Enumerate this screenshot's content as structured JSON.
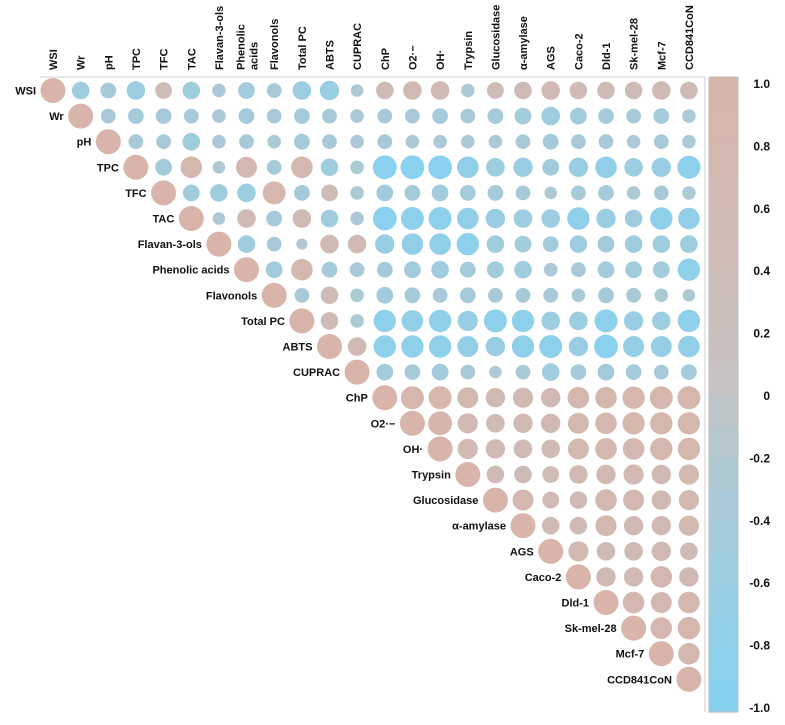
{
  "chart_data": {
    "type": "heatmap",
    "variables": [
      "WSI",
      "Wr",
      "pH",
      "TPC",
      "TFC",
      "TAC",
      "Flavan-3-ols",
      "Phenolic acids",
      "Flavonols",
      "Total PC",
      "ABTS",
      "CUPRAC",
      "ChP",
      "O2·−",
      "OH·",
      "Trypsin",
      "Glucosidase",
      "α-amylase",
      "AGS",
      "Caco-2",
      "Dld-1",
      "Sk-mel-28",
      "Mcf-7",
      "CCD841CoN"
    ],
    "column_labels": [
      [
        "WSI"
      ],
      [
        "Wr"
      ],
      [
        "pH"
      ],
      [
        "TPC"
      ],
      [
        "TFC"
      ],
      [
        "TAC"
      ],
      [
        "Flavan-3-ols"
      ],
      [
        "Phenolic",
        "acids"
      ],
      [
        "Flavonols"
      ],
      [
        "Total PC"
      ],
      [
        "ABTS"
      ],
      [
        "CUPRAC"
      ],
      [
        "ChP"
      ],
      [
        "O2·−"
      ],
      [
        "OH·"
      ],
      [
        "Trypsin"
      ],
      [
        "Glucosidase"
      ],
      [
        "α-amylase"
      ],
      [
        "AGS"
      ],
      [
        "Caco-2"
      ],
      [
        "Dld-1"
      ],
      [
        "Sk-mel-28"
      ],
      [
        "Mcf-7"
      ],
      [
        "CCD841CoN"
      ]
    ],
    "colorbar": {
      "ticks": [
        "1.0",
        "0.8",
        "0.6",
        "0.4",
        "0.2",
        "0",
        "-0.2",
        "-0.4",
        "-0.6",
        "-0.8",
        "-1.0"
      ],
      "range": [
        -1,
        1
      ],
      "high_color": "#d8b4aa",
      "mid_color": "#c4c4c4",
      "low_color": "#84d2f2"
    },
    "matrix": [
      [
        1,
        -0.5,
        -0.4,
        -0.55,
        0.45,
        -0.5,
        -0.3,
        -0.45,
        -0.35,
        -0.55,
        -0.6,
        -0.25,
        0.5,
        0.55,
        0.55,
        -0.3,
        0.45,
        0.5,
        0.55,
        0.5,
        0.5,
        0.5,
        0.55,
        0.5
      ],
      [
        null,
        1,
        -0.35,
        -0.4,
        -0.4,
        -0.35,
        -0.3,
        -0.4,
        -0.35,
        -0.4,
        -0.35,
        -0.3,
        -0.35,
        -0.35,
        -0.4,
        -0.35,
        -0.4,
        -0.45,
        -0.55,
        -0.45,
        -0.4,
        -0.35,
        -0.4,
        -0.3
      ],
      [
        null,
        null,
        1,
        -0.35,
        -0.35,
        -0.5,
        -0.3,
        -0.35,
        -0.3,
        -0.4,
        -0.35,
        -0.3,
        -0.35,
        -0.3,
        -0.3,
        -0.3,
        -0.3,
        -0.35,
        -0.4,
        -0.35,
        -0.35,
        -0.3,
        -0.35,
        -0.3
      ],
      [
        null,
        null,
        null,
        1,
        -0.45,
        0.75,
        -0.25,
        0.7,
        -0.35,
        0.75,
        -0.5,
        -0.3,
        -0.9,
        -0.9,
        -0.9,
        -0.75,
        -0.55,
        -0.6,
        -0.45,
        -0.6,
        -0.75,
        -0.55,
        -0.6,
        -0.85
      ],
      [
        null,
        null,
        null,
        null,
        1,
        -0.45,
        -0.5,
        -0.55,
        0.85,
        -0.4,
        0.45,
        -0.3,
        -0.45,
        -0.4,
        -0.45,
        -0.4,
        -0.4,
        -0.35,
        -0.25,
        -0.35,
        -0.4,
        -0.3,
        -0.35,
        -0.3
      ],
      [
        null,
        null,
        null,
        null,
        null,
        1,
        -0.25,
        0.55,
        -0.4,
        0.55,
        -0.5,
        -0.3,
        -0.9,
        -0.85,
        -0.85,
        -0.75,
        -0.6,
        -0.55,
        -0.55,
        -0.8,
        -0.6,
        -0.5,
        -0.8,
        -0.75
      ],
      [
        null,
        null,
        null,
        null,
        null,
        null,
        1,
        -0.5,
        -0.35,
        -0.2,
        0.55,
        0.55,
        -0.6,
        -0.75,
        -0.75,
        -0.8,
        -0.5,
        -0.45,
        -0.4,
        -0.5,
        -0.45,
        -0.5,
        -0.5,
        -0.5
      ],
      [
        null,
        null,
        null,
        null,
        null,
        null,
        null,
        1,
        -0.45,
        0.75,
        -0.4,
        -0.35,
        -0.4,
        -0.45,
        -0.5,
        -0.4,
        -0.45,
        -0.5,
        -0.3,
        -0.35,
        -0.45,
        -0.45,
        -0.45,
        -0.8
      ],
      [
        null,
        null,
        null,
        null,
        null,
        null,
        null,
        null,
        1,
        -0.35,
        0.5,
        -0.3,
        -0.45,
        -0.4,
        -0.35,
        -0.4,
        -0.35,
        -0.35,
        -0.35,
        -0.3,
        -0.4,
        -0.35,
        -0.3,
        -0.25
      ],
      [
        null,
        null,
        null,
        null,
        null,
        null,
        null,
        null,
        null,
        1,
        0.5,
        -0.3,
        -0.8,
        -0.75,
        -0.8,
        -0.65,
        -0.85,
        -0.8,
        -0.55,
        -0.55,
        -0.85,
        -0.6,
        -0.55,
        -0.8
      ],
      [
        null,
        null,
        null,
        null,
        null,
        null,
        null,
        null,
        null,
        null,
        1,
        0.55,
        -0.8,
        -0.8,
        -0.8,
        -0.7,
        -0.6,
        -0.8,
        -0.85,
        -0.6,
        -0.9,
        -0.7,
        -0.7,
        -0.75
      ],
      [
        null,
        null,
        null,
        null,
        null,
        null,
        null,
        null,
        null,
        null,
        null,
        1,
        -0.45,
        -0.4,
        -0.45,
        -0.35,
        -0.25,
        -0.35,
        -0.5,
        -0.4,
        -0.45,
        -0.4,
        -0.35,
        -0.4
      ],
      [
        null,
        null,
        null,
        null,
        null,
        null,
        null,
        null,
        null,
        null,
        null,
        null,
        1,
        0.85,
        0.85,
        0.7,
        0.6,
        0.65,
        0.6,
        0.75,
        0.75,
        0.8,
        0.85,
        0.85
      ],
      [
        null,
        null,
        null,
        null,
        null,
        null,
        null,
        null,
        null,
        null,
        null,
        null,
        null,
        1,
        0.9,
        0.65,
        0.55,
        0.6,
        0.6,
        0.7,
        0.75,
        0.8,
        0.8,
        0.8
      ],
      [
        null,
        null,
        null,
        null,
        null,
        null,
        null,
        null,
        null,
        null,
        null,
        null,
        null,
        null,
        1,
        0.65,
        0.6,
        0.55,
        0.55,
        0.7,
        0.75,
        0.75,
        0.8,
        0.8
      ],
      [
        null,
        null,
        null,
        null,
        null,
        null,
        null,
        null,
        null,
        null,
        null,
        null,
        null,
        null,
        null,
        1,
        0.5,
        0.5,
        0.45,
        0.55,
        0.6,
        0.65,
        0.6,
        0.65
      ],
      [
        null,
        null,
        null,
        null,
        null,
        null,
        null,
        null,
        null,
        null,
        null,
        null,
        null,
        null,
        null,
        null,
        1,
        0.7,
        0.45,
        0.5,
        0.75,
        0.7,
        0.6,
        0.65
      ],
      [
        null,
        null,
        null,
        null,
        null,
        null,
        null,
        null,
        null,
        null,
        null,
        null,
        null,
        null,
        null,
        null,
        null,
        1,
        0.5,
        0.5,
        0.7,
        0.6,
        0.6,
        0.65
      ],
      [
        null,
        null,
        null,
        null,
        null,
        null,
        null,
        null,
        null,
        null,
        null,
        null,
        null,
        null,
        null,
        null,
        null,
        null,
        1,
        0.65,
        0.55,
        0.55,
        0.6,
        0.5
      ],
      [
        null,
        null,
        null,
        null,
        null,
        null,
        null,
        null,
        null,
        null,
        null,
        null,
        null,
        null,
        null,
        null,
        null,
        null,
        null,
        1,
        0.6,
        0.6,
        0.75,
        0.6
      ],
      [
        null,
        null,
        null,
        null,
        null,
        null,
        null,
        null,
        null,
        null,
        null,
        null,
        null,
        null,
        null,
        null,
        null,
        null,
        null,
        null,
        1,
        0.75,
        0.7,
        0.75
      ],
      [
        null,
        null,
        null,
        null,
        null,
        null,
        null,
        null,
        null,
        null,
        null,
        null,
        null,
        null,
        null,
        null,
        null,
        null,
        null,
        null,
        null,
        1,
        0.75,
        0.8
      ],
      [
        null,
        null,
        null,
        null,
        null,
        null,
        null,
        null,
        null,
        null,
        null,
        null,
        null,
        null,
        null,
        null,
        null,
        null,
        null,
        null,
        null,
        null,
        1,
        0.75
      ],
      [
        null,
        null,
        null,
        null,
        null,
        null,
        null,
        null,
        null,
        null,
        null,
        null,
        null,
        null,
        null,
        null,
        null,
        null,
        null,
        null,
        null,
        null,
        null,
        1
      ]
    ]
  }
}
